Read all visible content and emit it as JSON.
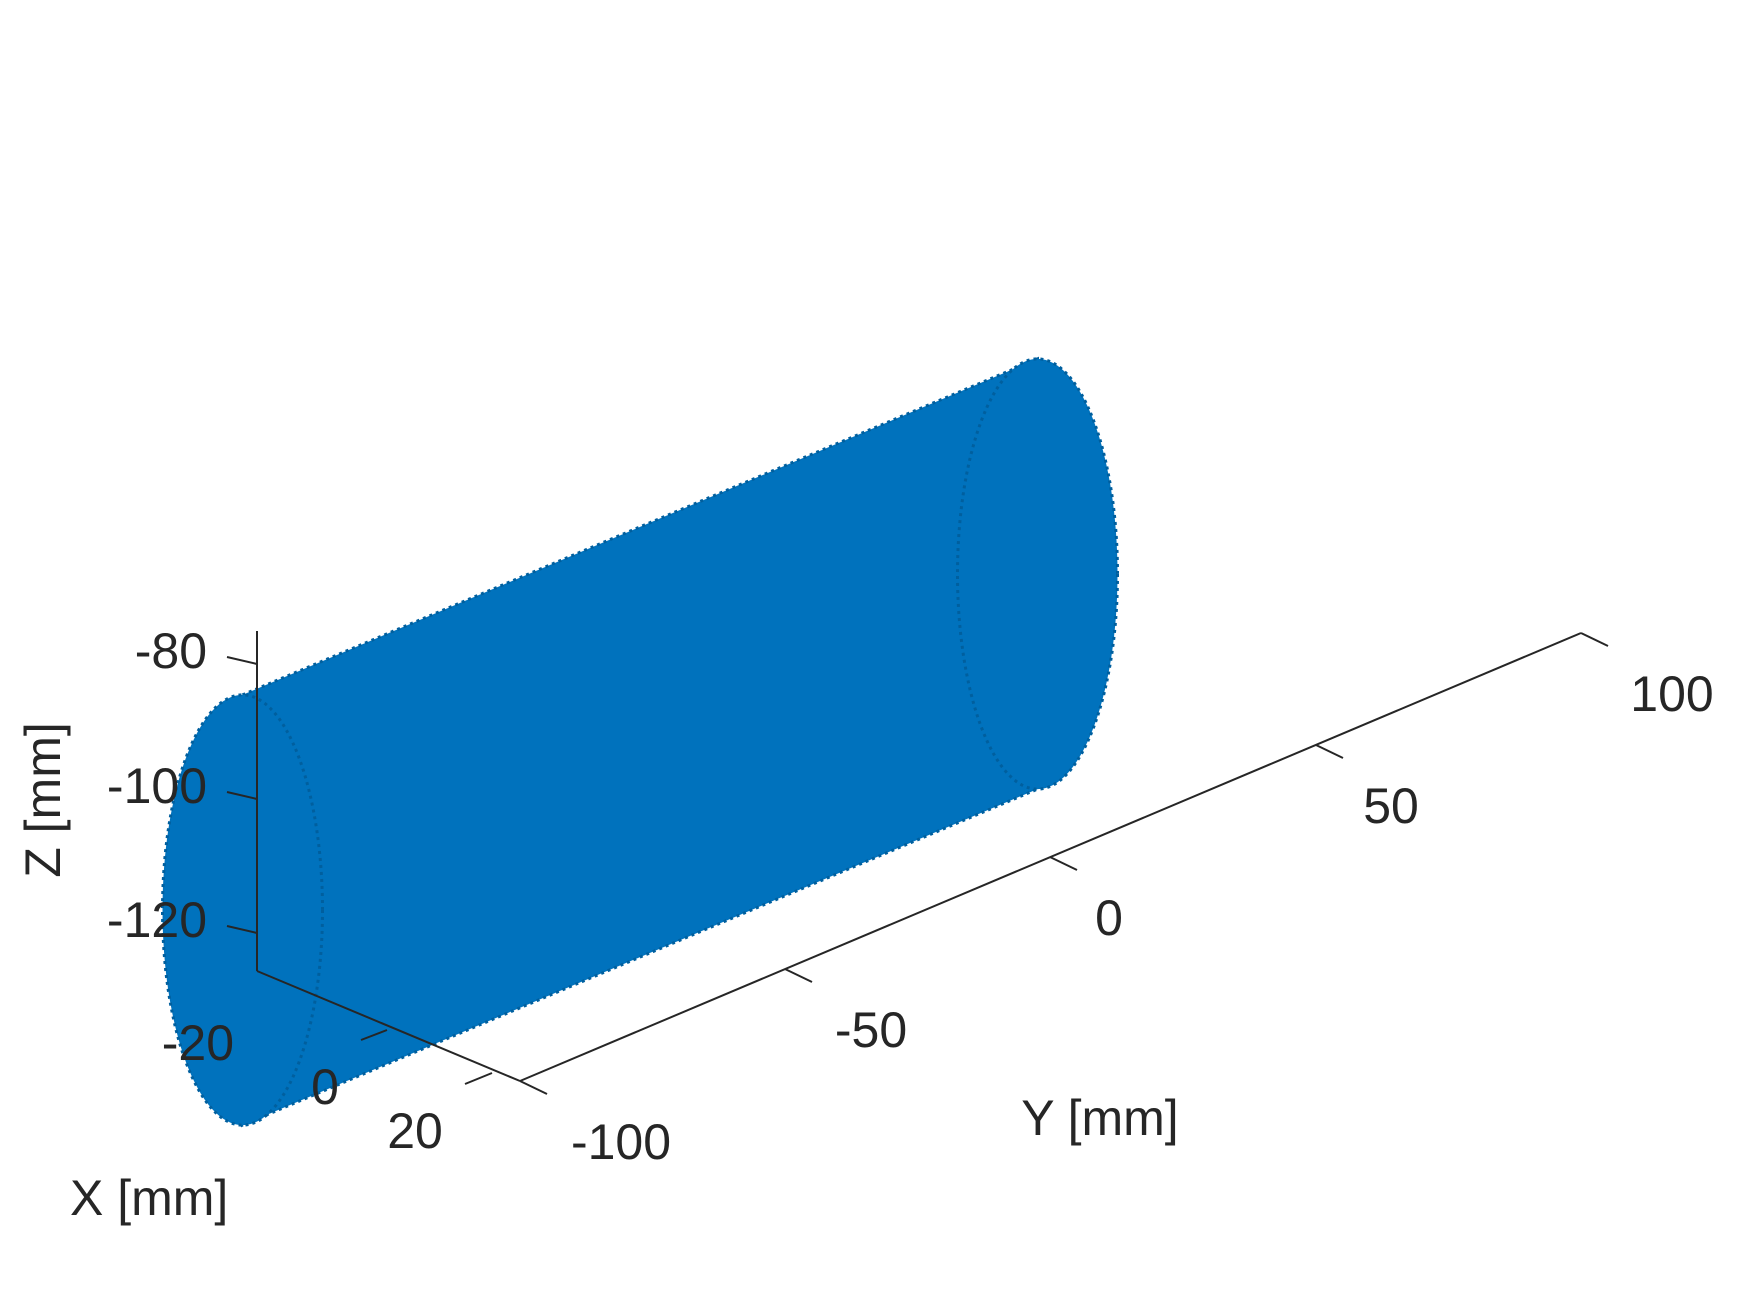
{
  "chart_data": {
    "type": "scatter",
    "subtype": "3d-point-cloud",
    "title": "",
    "series": [
      {
        "shape": "cylinder",
        "color": "#0072bd",
        "axis_direction": "y",
        "y_range": [
          -75,
          75
        ],
        "center_x": 0,
        "center_z": -100,
        "radius": 27
      }
    ],
    "axes": {
      "x": {
        "label": "X  [mm]",
        "ticks": [
          -20,
          0,
          20
        ],
        "tick_labels": [
          "-20",
          "0",
          "20"
        ],
        "lim": [
          -30,
          30
        ]
      },
      "y": {
        "label": "Y  [mm]",
        "ticks": [
          -100,
          -50,
          0,
          50,
          100
        ],
        "tick_labels": [
          "-100",
          "-50",
          "0",
          "50",
          "100"
        ],
        "lim": [
          -100,
          100
        ]
      },
      "z": {
        "label": "Z  [mm]",
        "ticks": [
          -80,
          -100,
          -120
        ],
        "tick_labels": [
          "-80",
          "-100",
          "-120"
        ],
        "lim": [
          -125,
          -75
        ]
      }
    },
    "grid": false,
    "legend": "none",
    "view": "3d-isometric"
  }
}
